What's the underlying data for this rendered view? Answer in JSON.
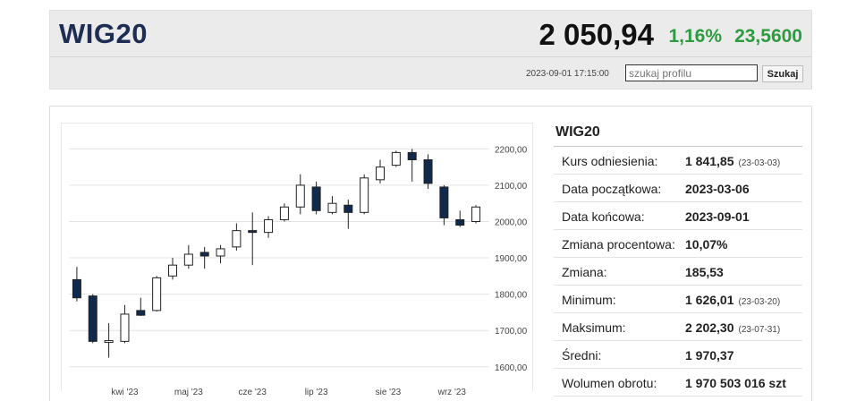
{
  "header": {
    "title": "WIG20",
    "price": "2 050,94",
    "change_pct": "1,16%",
    "change_abs": "23,5600",
    "timestamp": "2023-09-01 17:15:00",
    "search_placeholder": "szukaj profilu",
    "search_button": "Szukaj",
    "colors": {
      "accent": "#1d2d53",
      "positive": "#2f9b40"
    }
  },
  "stats": {
    "title": "WIG20",
    "rows": [
      {
        "label": "Kurs odniesienia:",
        "value": "1 841,85",
        "date": "(23-03-03)"
      },
      {
        "label": "Data początkowa:",
        "value": "2023-03-06",
        "date": ""
      },
      {
        "label": "Data końcowa:",
        "value": "2023-09-01",
        "date": ""
      },
      {
        "label": "Zmiana procentowa:",
        "value": "10,07%",
        "date": ""
      },
      {
        "label": "Zmiana:",
        "value": "185,53",
        "date": ""
      },
      {
        "label": "Minimum:",
        "value": "1 626,01",
        "date": "(23-03-20)"
      },
      {
        "label": "Maksimum:",
        "value": "2 202,30",
        "date": "(23-07-31)"
      },
      {
        "label": "Średni:",
        "value": "1 970,37",
        "date": ""
      },
      {
        "label": "Wolumen obrotu:",
        "value": "1 970 503 016 szt",
        "date": ""
      }
    ]
  },
  "chart_data": {
    "type": "candlestick",
    "ylim": [
      1560,
      2260
    ],
    "y_ticks": [
      1600,
      1700,
      1800,
      1900,
      2000,
      2100,
      2200
    ],
    "y_tick_labels": [
      "1600,00",
      "1700,00",
      "1800,00",
      "1900,00",
      "2000,00",
      "2100,00",
      "2200,00"
    ],
    "x_ticks": [
      3.5,
      7.5,
      11.5,
      15.5,
      20.0,
      24.0
    ],
    "x_tick_labels": [
      "kwi '23",
      "maj '23",
      "cze '23",
      "lip '23",
      "sie '23",
      "wrz '23"
    ],
    "grid": true,
    "up_color": "#ffffff",
    "down_color": "#102a4d",
    "candles": [
      {
        "o": 1840,
        "h": 1875,
        "l": 1780,
        "c": 1790
      },
      {
        "o": 1795,
        "h": 1800,
        "l": 1665,
        "c": 1670
      },
      {
        "o": 1670,
        "h": 1720,
        "l": 1625,
        "c": 1672
      },
      {
        "o": 1670,
        "h": 1770,
        "l": 1665,
        "c": 1745
      },
      {
        "o": 1755,
        "h": 1790,
        "l": 1740,
        "c": 1742
      },
      {
        "o": 1755,
        "h": 1850,
        "l": 1752,
        "c": 1845
      },
      {
        "o": 1850,
        "h": 1900,
        "l": 1840,
        "c": 1880
      },
      {
        "o": 1880,
        "h": 1935,
        "l": 1870,
        "c": 1910
      },
      {
        "o": 1915,
        "h": 1930,
        "l": 1870,
        "c": 1905
      },
      {
        "o": 1905,
        "h": 1935,
        "l": 1885,
        "c": 1925
      },
      {
        "o": 1930,
        "h": 1995,
        "l": 1920,
        "c": 1975
      },
      {
        "o": 1975,
        "h": 2025,
        "l": 1880,
        "c": 1970
      },
      {
        "o": 1970,
        "h": 2015,
        "l": 1955,
        "c": 2005
      },
      {
        "o": 2005,
        "h": 2050,
        "l": 2000,
        "c": 2040
      },
      {
        "o": 2040,
        "h": 2130,
        "l": 2020,
        "c": 2100
      },
      {
        "o": 2095,
        "h": 2110,
        "l": 2020,
        "c": 2030
      },
      {
        "o": 2025,
        "h": 2070,
        "l": 2020,
        "c": 2050
      },
      {
        "o": 2045,
        "h": 2060,
        "l": 1980,
        "c": 2025
      },
      {
        "o": 2025,
        "h": 2130,
        "l": 2020,
        "c": 2120
      },
      {
        "o": 2115,
        "h": 2170,
        "l": 2105,
        "c": 2150
      },
      {
        "o": 2155,
        "h": 2195,
        "l": 2150,
        "c": 2190
      },
      {
        "o": 2190,
        "h": 2200,
        "l": 2110,
        "c": 2170
      },
      {
        "o": 2170,
        "h": 2185,
        "l": 2090,
        "c": 2105
      },
      {
        "o": 2095,
        "h": 2100,
        "l": 1990,
        "c": 2010
      },
      {
        "o": 2005,
        "h": 2030,
        "l": 1985,
        "c": 1990
      },
      {
        "o": 2000,
        "h": 2045,
        "l": 1995,
        "c": 2040
      }
    ]
  }
}
